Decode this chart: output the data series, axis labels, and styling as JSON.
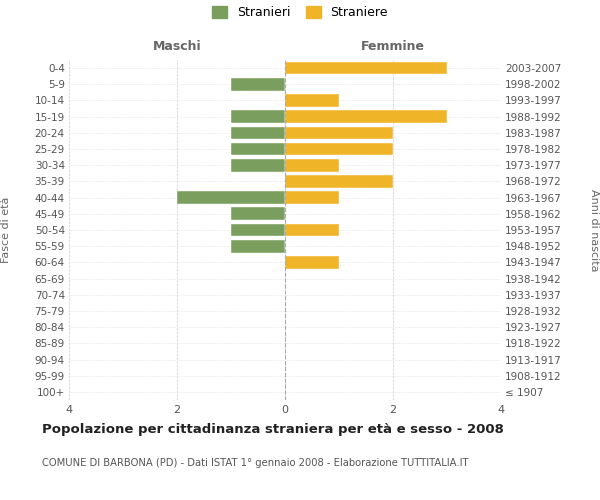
{
  "age_groups": [
    "100+",
    "95-99",
    "90-94",
    "85-89",
    "80-84",
    "75-79",
    "70-74",
    "65-69",
    "60-64",
    "55-59",
    "50-54",
    "45-49",
    "40-44",
    "35-39",
    "30-34",
    "25-29",
    "20-24",
    "15-19",
    "10-14",
    "5-9",
    "0-4"
  ],
  "birth_years": [
    "≤ 1907",
    "1908-1912",
    "1913-1917",
    "1918-1922",
    "1923-1927",
    "1928-1932",
    "1933-1937",
    "1938-1942",
    "1943-1947",
    "1948-1952",
    "1953-1957",
    "1958-1962",
    "1963-1967",
    "1968-1972",
    "1973-1977",
    "1978-1982",
    "1983-1987",
    "1988-1992",
    "1993-1997",
    "1998-2002",
    "2003-2007"
  ],
  "maschi": [
    0,
    0,
    0,
    0,
    0,
    0,
    0,
    0,
    0,
    1,
    1,
    1,
    2,
    0,
    1,
    1,
    1,
    1,
    0,
    1,
    0
  ],
  "femmine": [
    0,
    0,
    0,
    0,
    0,
    0,
    0,
    0,
    1,
    0,
    1,
    0,
    1,
    2,
    1,
    2,
    2,
    3,
    1,
    0,
    3
  ],
  "male_color": "#7a9e5e",
  "female_color": "#f0b429",
  "title": "Popolazione per cittadinanza straniera per età e sesso - 2008",
  "subtitle": "COMUNE DI BARBONA (PD) - Dati ISTAT 1° gennaio 2008 - Elaborazione TUTTITALIA.IT",
  "legend_male": "Stranieri",
  "legend_female": "Straniere",
  "xlabel_left": "Maschi",
  "xlabel_right": "Femmine",
  "ylabel_left": "Fasce di età",
  "ylabel_right": "Anni di nascita",
  "xlim": 4,
  "background_color": "#ffffff",
  "grid_color": "#cccccc"
}
